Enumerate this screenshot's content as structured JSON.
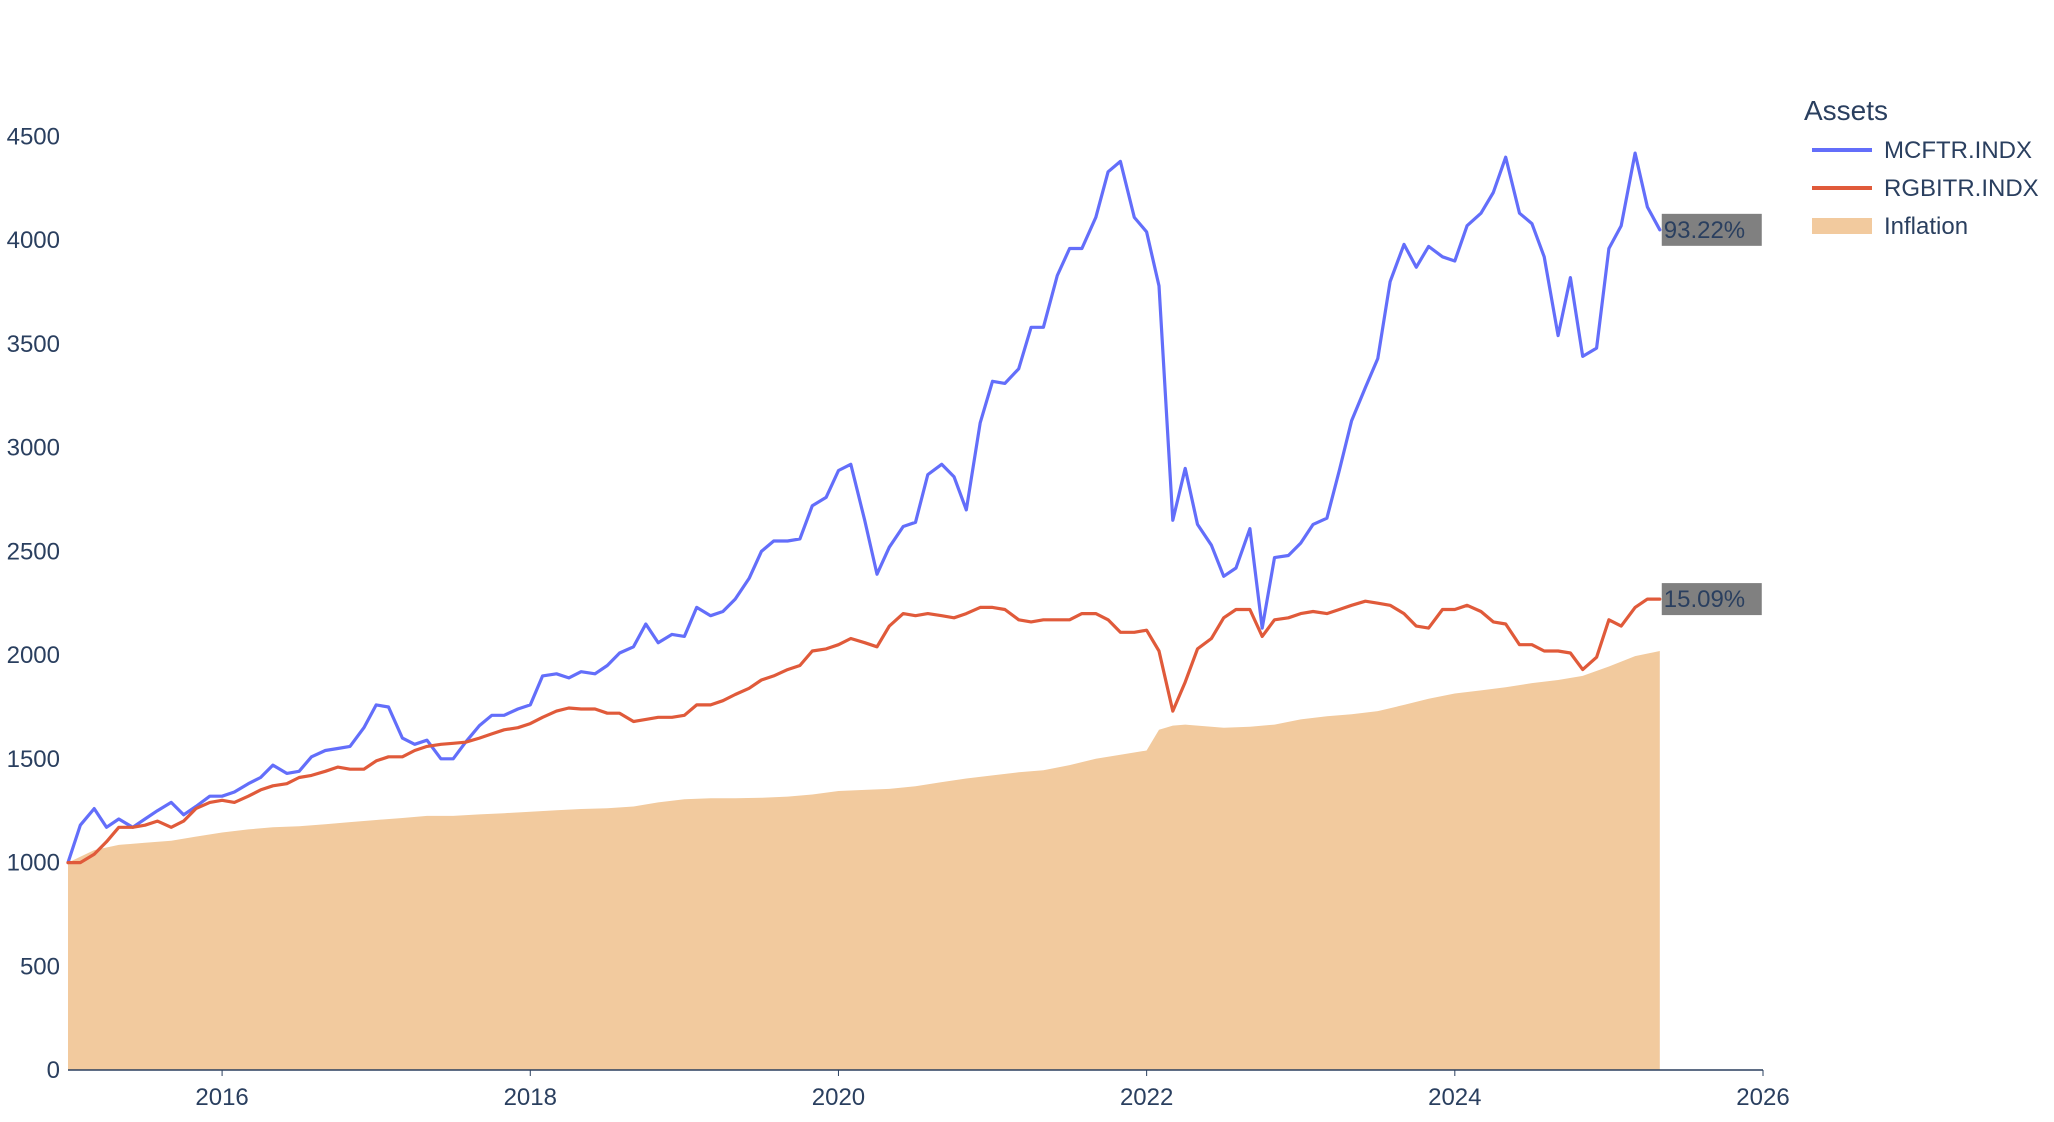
{
  "chart_data": {
    "type": "line",
    "legend": {
      "title": "Assets",
      "placement": "top-right"
    },
    "xaxis": {
      "range": [
        2015.0,
        2026.0
      ],
      "ticks": [
        "2016",
        "2018",
        "2020",
        "2022",
        "2024",
        "2026"
      ]
    },
    "yaxis": {
      "range": [
        0,
        4700
      ],
      "ticks": [
        "0",
        "500",
        "1000",
        "1500",
        "2000",
        "2500",
        "3000",
        "3500",
        "4000",
        "4500"
      ]
    },
    "grid": false,
    "series": [
      {
        "name": "MCFTR.INDX",
        "kind": "line",
        "color": "#636efa",
        "end_label": "93.22%",
        "x": [
          2015.0,
          2015.08,
          2015.17,
          2015.25,
          2015.33,
          2015.42,
          2015.5,
          2015.58,
          2015.67,
          2015.75,
          2015.83,
          2015.92,
          2016.0,
          2016.08,
          2016.17,
          2016.25,
          2016.33,
          2016.42,
          2016.5,
          2016.58,
          2016.67,
          2016.75,
          2016.83,
          2016.92,
          2017.0,
          2017.08,
          2017.17,
          2017.25,
          2017.33,
          2017.42,
          2017.5,
          2017.58,
          2017.67,
          2017.75,
          2017.83,
          2017.92,
          2018.0,
          2018.08,
          2018.17,
          2018.25,
          2018.33,
          2018.42,
          2018.5,
          2018.58,
          2018.67,
          2018.75,
          2018.83,
          2018.92,
          2019.0,
          2019.08,
          2019.17,
          2019.25,
          2019.33,
          2019.42,
          2019.5,
          2019.58,
          2019.67,
          2019.75,
          2019.83,
          2019.92,
          2020.0,
          2020.08,
          2020.17,
          2020.25,
          2020.33,
          2020.42,
          2020.5,
          2020.58,
          2020.67,
          2020.75,
          2020.83,
          2020.92,
          2021.0,
          2021.08,
          2021.17,
          2021.25,
          2021.33,
          2021.42,
          2021.5,
          2021.58,
          2021.67,
          2021.75,
          2021.83,
          2021.92,
          2022.0,
          2022.08,
          2022.17,
          2022.25,
          2022.33,
          2022.42,
          2022.5,
          2022.58,
          2022.67,
          2022.75,
          2022.83,
          2022.92,
          2023.0,
          2023.08,
          2023.17,
          2023.25,
          2023.33,
          2023.42,
          2023.5,
          2023.58,
          2023.67,
          2023.75,
          2023.83,
          2023.92,
          2024.0,
          2024.08,
          2024.17,
          2024.25,
          2024.33,
          2024.42,
          2024.5,
          2024.58,
          2024.67,
          2024.75,
          2024.83,
          2024.92,
          2025.0,
          2025.08,
          2025.17,
          2025.25,
          2025.33
        ],
        "values": [
          1000,
          1180,
          1260,
          1170,
          1210,
          1170,
          1210,
          1250,
          1290,
          1230,
          1270,
          1320,
          1320,
          1340,
          1380,
          1410,
          1470,
          1430,
          1440,
          1510,
          1540,
          1550,
          1560,
          1650,
          1760,
          1750,
          1600,
          1570,
          1590,
          1500,
          1500,
          1580,
          1660,
          1710,
          1710,
          1740,
          1760,
          1900,
          1910,
          1890,
          1920,
          1910,
          1950,
          2010,
          2040,
          2150,
          2060,
          2100,
          2090,
          2230,
          2190,
          2210,
          2270,
          2370,
          2500,
          2550,
          2550,
          2560,
          2720,
          2760,
          2890,
          2920,
          2650,
          2390,
          2520,
          2620,
          2640,
          2870,
          2920,
          2860,
          2700,
          3120,
          3320,
          3310,
          3380,
          3580,
          3580,
          3830,
          3960,
          3960,
          4110,
          4330,
          4380,
          4110,
          4040,
          3780,
          2650,
          2900,
          2630,
          2530,
          2380,
          2420,
          2610,
          2130,
          2470,
          2480,
          2540,
          2630,
          2660,
          2890,
          3130,
          3290,
          3430,
          3800,
          3980,
          3870,
          3970,
          3920,
          3900,
          4070,
          4130,
          4230,
          4400,
          4130,
          4080,
          3920,
          3540,
          3820,
          3440,
          3480,
          3960,
          4070,
          4420,
          4160,
          4050
        ]
      },
      {
        "name": "RGBITR.INDX",
        "kind": "line",
        "color": "#e05a3a",
        "end_label": "15.09%",
        "x": [
          2015.0,
          2015.08,
          2015.17,
          2015.25,
          2015.33,
          2015.42,
          2015.5,
          2015.58,
          2015.67,
          2015.75,
          2015.83,
          2015.92,
          2016.0,
          2016.08,
          2016.17,
          2016.25,
          2016.33,
          2016.42,
          2016.5,
          2016.58,
          2016.67,
          2016.75,
          2016.83,
          2016.92,
          2017.0,
          2017.08,
          2017.17,
          2017.25,
          2017.33,
          2017.42,
          2017.5,
          2017.58,
          2017.67,
          2017.75,
          2017.83,
          2017.92,
          2018.0,
          2018.08,
          2018.17,
          2018.25,
          2018.33,
          2018.42,
          2018.5,
          2018.58,
          2018.67,
          2018.75,
          2018.83,
          2018.92,
          2019.0,
          2019.08,
          2019.17,
          2019.25,
          2019.33,
          2019.42,
          2019.5,
          2019.58,
          2019.67,
          2019.75,
          2019.83,
          2019.92,
          2020.0,
          2020.08,
          2020.17,
          2020.25,
          2020.33,
          2020.42,
          2020.5,
          2020.58,
          2020.67,
          2020.75,
          2020.83,
          2020.92,
          2021.0,
          2021.08,
          2021.17,
          2021.25,
          2021.33,
          2021.42,
          2021.5,
          2021.58,
          2021.67,
          2021.75,
          2021.83,
          2021.92,
          2022.0,
          2022.08,
          2022.17,
          2022.25,
          2022.33,
          2022.42,
          2022.5,
          2022.58,
          2022.67,
          2022.75,
          2022.83,
          2022.92,
          2023.0,
          2023.08,
          2023.17,
          2023.25,
          2023.33,
          2023.42,
          2023.5,
          2023.58,
          2023.67,
          2023.75,
          2023.83,
          2023.92,
          2024.0,
          2024.08,
          2024.17,
          2024.25,
          2024.33,
          2024.42,
          2024.5,
          2024.58,
          2024.67,
          2024.75,
          2024.83,
          2024.92,
          2025.0,
          2025.08,
          2025.17,
          2025.25,
          2025.33
        ],
        "values": [
          1000,
          1000,
          1040,
          1100,
          1170,
          1170,
          1180,
          1200,
          1170,
          1200,
          1260,
          1290,
          1300,
          1290,
          1320,
          1350,
          1370,
          1380,
          1410,
          1420,
          1440,
          1460,
          1450,
          1450,
          1490,
          1510,
          1510,
          1540,
          1560,
          1570,
          1575,
          1580,
          1600,
          1620,
          1640,
          1650,
          1670,
          1700,
          1730,
          1745,
          1740,
          1740,
          1720,
          1720,
          1680,
          1690,
          1700,
          1700,
          1710,
          1760,
          1760,
          1780,
          1810,
          1840,
          1880,
          1900,
          1930,
          1950,
          2020,
          2030,
          2050,
          2080,
          2060,
          2040,
          2140,
          2200,
          2190,
          2200,
          2190,
          2180,
          2200,
          2230,
          2230,
          2220,
          2170,
          2160,
          2170,
          2170,
          2170,
          2200,
          2200,
          2170,
          2110,
          2110,
          2120,
          2020,
          1730,
          1870,
          2030,
          2080,
          2180,
          2220,
          2220,
          2090,
          2170,
          2180,
          2200,
          2210,
          2200,
          2220,
          2240,
          2260,
          2250,
          2240,
          2200,
          2140,
          2130,
          2220,
          2220,
          2240,
          2210,
          2160,
          2150,
          2050,
          2050,
          2020,
          2020,
          2010,
          1930,
          1990,
          2170,
          2140,
          2230,
          2270,
          2270
        ]
      },
      {
        "name": "Inflation",
        "kind": "area",
        "color": "#f2ca9e",
        "x": [
          2015.0,
          2015.17,
          2015.33,
          2015.5,
          2015.67,
          2015.83,
          2016.0,
          2016.17,
          2016.33,
          2016.5,
          2016.67,
          2016.83,
          2017.0,
          2017.17,
          2017.33,
          2017.5,
          2017.67,
          2017.83,
          2018.0,
          2018.17,
          2018.33,
          2018.5,
          2018.67,
          2018.83,
          2019.0,
          2019.17,
          2019.33,
          2019.5,
          2019.67,
          2019.83,
          2020.0,
          2020.17,
          2020.33,
          2020.5,
          2020.67,
          2020.83,
          2021.0,
          2021.17,
          2021.33,
          2021.5,
          2021.67,
          2021.83,
          2022.0,
          2022.08,
          2022.17,
          2022.25,
          2022.33,
          2022.5,
          2022.67,
          2022.83,
          2023.0,
          2023.17,
          2023.33,
          2023.5,
          2023.67,
          2023.83,
          2024.0,
          2024.17,
          2024.33,
          2024.5,
          2024.67,
          2024.83,
          2025.0,
          2025.17,
          2025.33
        ],
        "values": [
          1000,
          1060,
          1085,
          1095,
          1105,
          1125,
          1145,
          1160,
          1170,
          1175,
          1185,
          1195,
          1205,
          1215,
          1225,
          1225,
          1232,
          1238,
          1245,
          1252,
          1258,
          1262,
          1270,
          1290,
          1305,
          1310,
          1310,
          1312,
          1318,
          1328,
          1345,
          1350,
          1355,
          1368,
          1388,
          1405,
          1420,
          1435,
          1445,
          1470,
          1500,
          1520,
          1540,
          1640,
          1660,
          1665,
          1660,
          1650,
          1655,
          1665,
          1690,
          1705,
          1715,
          1730,
          1760,
          1790,
          1815,
          1830,
          1845,
          1865,
          1880,
          1900,
          1945,
          1995,
          2020
        ]
      }
    ]
  }
}
